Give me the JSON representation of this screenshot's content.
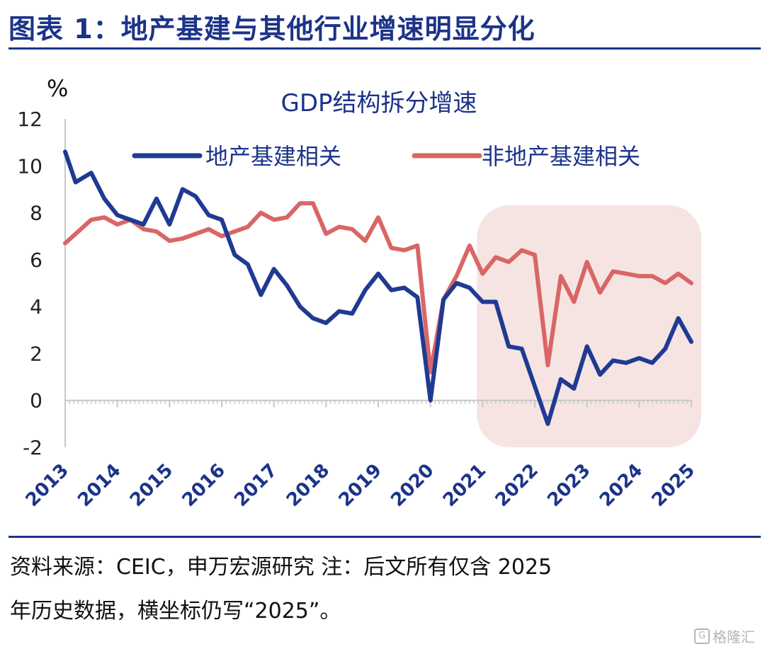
{
  "figure_title": "图表 1：地产基建与其他行业增速明显分化",
  "source_line1": "资料来源：CEIC，申万宏源研究 注：后文所有仅含 2025",
  "source_line2": "年历史数据，横坐标仍写“2025”。",
  "watermark": "格隆汇",
  "colors": {
    "accent": "#1c3388",
    "series_estate": "#1f3a93",
    "series_non_estate": "#d96666",
    "highlight_fill": "#f6e4e2"
  },
  "chart_data": {
    "type": "line",
    "title": "GDP结构拆分增速",
    "ylabel": "%",
    "ylim": [
      -2,
      12
    ],
    "yticks": [
      -2,
      0,
      2,
      4,
      6,
      8,
      10,
      12
    ],
    "xlim": [
      2013,
      2025
    ],
    "xticks": [
      "2013",
      "2014",
      "2015",
      "2016",
      "2017",
      "2018",
      "2019",
      "2020",
      "2021",
      "2022",
      "2023",
      "2024",
      "2025"
    ],
    "grid": false,
    "legend_position": "top",
    "highlight_range": [
      2021,
      2025
    ],
    "series": [
      {
        "name": "地产基建相关",
        "color": "#1f3a93",
        "x": [
          2013.0,
          2013.2,
          2013.5,
          2013.75,
          2014.0,
          2014.25,
          2014.5,
          2014.75,
          2015.0,
          2015.25,
          2015.5,
          2015.75,
          2016.0,
          2016.25,
          2016.5,
          2016.75,
          2017.0,
          2017.25,
          2017.5,
          2017.75,
          2018.0,
          2018.25,
          2018.5,
          2018.75,
          2019.0,
          2019.25,
          2019.5,
          2019.75,
          2020.0,
          2020.25,
          2020.5,
          2020.75,
          2021.0,
          2021.25,
          2021.5,
          2021.75,
          2022.0,
          2022.25,
          2022.5,
          2022.75,
          2023.0,
          2023.25,
          2023.5,
          2023.75,
          2024.0,
          2024.25,
          2024.5,
          2024.75,
          2025.0
        ],
        "y": [
          10.6,
          9.3,
          9.7,
          8.6,
          7.9,
          7.7,
          7.5,
          8.6,
          7.5,
          9.0,
          8.7,
          7.9,
          7.7,
          6.2,
          5.8,
          4.5,
          5.6,
          4.9,
          4.0,
          3.5,
          3.3,
          3.8,
          3.7,
          4.7,
          5.4,
          4.7,
          4.8,
          4.4,
          0.0,
          4.3,
          5.0,
          4.8,
          4.2,
          4.2,
          2.3,
          2.2,
          0.6,
          -1.0,
          0.9,
          0.5,
          2.3,
          1.1,
          1.7,
          1.6,
          1.8,
          1.6,
          2.2,
          3.5,
          2.5
        ]
      },
      {
        "name": "非地产基建相关",
        "color": "#d96666",
        "x": [
          2013.0,
          2013.25,
          2013.5,
          2013.75,
          2014.0,
          2014.25,
          2014.5,
          2014.75,
          2015.0,
          2015.25,
          2015.5,
          2015.75,
          2016.0,
          2016.25,
          2016.5,
          2016.75,
          2017.0,
          2017.25,
          2017.5,
          2017.75,
          2018.0,
          2018.25,
          2018.5,
          2018.75,
          2019.0,
          2019.25,
          2019.5,
          2019.75,
          2020.0,
          2020.25,
          2020.5,
          2020.75,
          2021.0,
          2021.25,
          2021.5,
          2021.75,
          2022.0,
          2022.25,
          2022.5,
          2022.75,
          2023.0,
          2023.25,
          2023.5,
          2023.75,
          2024.0,
          2024.25,
          2024.5,
          2024.75,
          2025.0
        ],
        "y": [
          6.7,
          7.2,
          7.7,
          7.8,
          7.5,
          7.7,
          7.3,
          7.2,
          6.8,
          6.9,
          7.1,
          7.3,
          7.0,
          7.2,
          7.4,
          8.0,
          7.7,
          7.8,
          8.4,
          8.4,
          7.1,
          7.4,
          7.3,
          6.8,
          7.8,
          6.5,
          6.4,
          6.6,
          1.2,
          4.3,
          5.3,
          6.6,
          5.4,
          6.1,
          5.9,
          6.4,
          6.2,
          1.5,
          5.3,
          4.2,
          5.9,
          4.6,
          5.5,
          5.4,
          5.3,
          5.3,
          5.0,
          5.4,
          5.0
        ]
      }
    ]
  }
}
